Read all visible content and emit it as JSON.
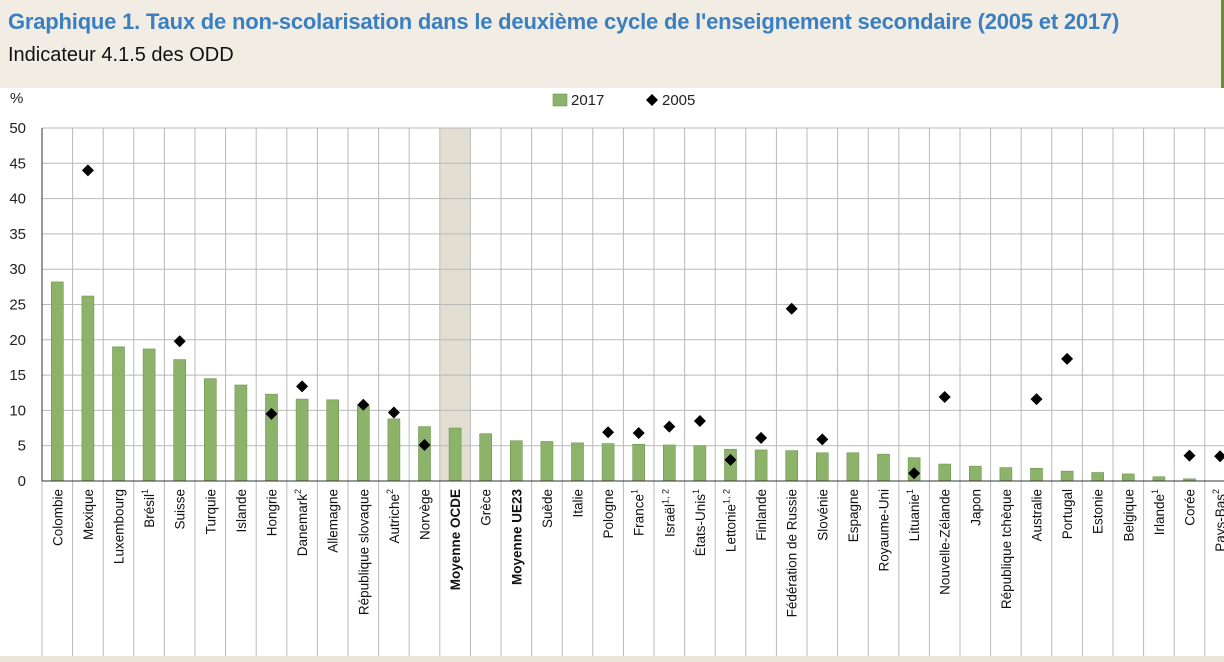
{
  "title": "Graphique 1. Taux de non-scolarisation dans le deuxième cycle de l'enseignement secondaire (2005 et 2017)",
  "subtitle": "Indicateur 4.1.5 des ODD",
  "colors": {
    "bar": "#8db36b",
    "bar_edge": "#6e9450",
    "marker": "#000000",
    "highlight": "#e3ded2",
    "title": "#3a7fc1"
  },
  "chart_data": {
    "type": "bar",
    "ylabel": "%",
    "ylim": [
      0,
      50
    ],
    "yticks": [
      0,
      5,
      10,
      15,
      20,
      25,
      30,
      35,
      40,
      45,
      50
    ],
    "grid": true,
    "legend_position": "top-center",
    "legend": [
      "2017",
      "2005"
    ],
    "highlighted_categories": [
      "Moyenne OCDE"
    ],
    "bold_categories": [
      "Moyenne OCDE",
      "Moyenne UE23"
    ],
    "categories": [
      {
        "label": "Colombie",
        "sup": ""
      },
      {
        "label": "Mexique",
        "sup": ""
      },
      {
        "label": "Luxembourg",
        "sup": ""
      },
      {
        "label": "Brésil",
        "sup": "1"
      },
      {
        "label": "Suisse",
        "sup": ""
      },
      {
        "label": "Turquie",
        "sup": ""
      },
      {
        "label": "Islande",
        "sup": ""
      },
      {
        "label": "Hongrie",
        "sup": ""
      },
      {
        "label": "Danemark",
        "sup": "2"
      },
      {
        "label": "Allemagne",
        "sup": ""
      },
      {
        "label": "République slovaque",
        "sup": ""
      },
      {
        "label": "Autriche",
        "sup": "2"
      },
      {
        "label": "Norvège",
        "sup": ""
      },
      {
        "label": "Moyenne OCDE",
        "sup": ""
      },
      {
        "label": "Grèce",
        "sup": ""
      },
      {
        "label": "Moyenne UE23",
        "sup": ""
      },
      {
        "label": "Suède",
        "sup": ""
      },
      {
        "label": "Italie",
        "sup": ""
      },
      {
        "label": "Pologne",
        "sup": ""
      },
      {
        "label": "France",
        "sup": "1"
      },
      {
        "label": "Israël",
        "sup": "1, 2"
      },
      {
        "label": "États-Unis",
        "sup": "1"
      },
      {
        "label": "Lettonie",
        "sup": "1, 2"
      },
      {
        "label": "Finlande",
        "sup": ""
      },
      {
        "label": "Fédération de Russie",
        "sup": ""
      },
      {
        "label": "Slovénie",
        "sup": ""
      },
      {
        "label": "Espagne",
        "sup": ""
      },
      {
        "label": "Royaume-Uni",
        "sup": ""
      },
      {
        "label": "Lituanie",
        "sup": "1"
      },
      {
        "label": "Nouvelle-Zélande",
        "sup": ""
      },
      {
        "label": "Japon",
        "sup": ""
      },
      {
        "label": "République tchèque",
        "sup": ""
      },
      {
        "label": "Australie",
        "sup": ""
      },
      {
        "label": "Portugal",
        "sup": ""
      },
      {
        "label": "Estonie",
        "sup": ""
      },
      {
        "label": "Belgique",
        "sup": ""
      },
      {
        "label": "Irlande",
        "sup": "1"
      },
      {
        "label": "Corée",
        "sup": ""
      },
      {
        "label": "Pays-Bas",
        "sup": "2"
      }
    ],
    "series": [
      {
        "name": "2017",
        "kind": "bar",
        "values": [
          28.2,
          26.2,
          19.0,
          18.7,
          17.2,
          14.5,
          13.6,
          12.3,
          11.6,
          11.5,
          10.7,
          8.8,
          7.7,
          7.5,
          6.7,
          5.7,
          5.6,
          5.4,
          5.3,
          5.2,
          5.1,
          5.0,
          4.5,
          4.4,
          4.3,
          4.0,
          4.0,
          3.8,
          3.3,
          2.4,
          2.1,
          1.9,
          1.8,
          1.4,
          1.2,
          1.0,
          0.6,
          0.3,
          null
        ]
      },
      {
        "name": "2005",
        "kind": "marker",
        "values": [
          null,
          44.0,
          null,
          null,
          19.8,
          null,
          null,
          9.5,
          13.4,
          null,
          10.8,
          9.7,
          5.1,
          null,
          null,
          null,
          null,
          null,
          6.9,
          6.8,
          7.7,
          8.5,
          3.0,
          6.1,
          24.4,
          5.9,
          null,
          null,
          1.1,
          11.9,
          null,
          null,
          11.6,
          17.3,
          null,
          null,
          null,
          3.6,
          3.5
        ]
      }
    ]
  }
}
